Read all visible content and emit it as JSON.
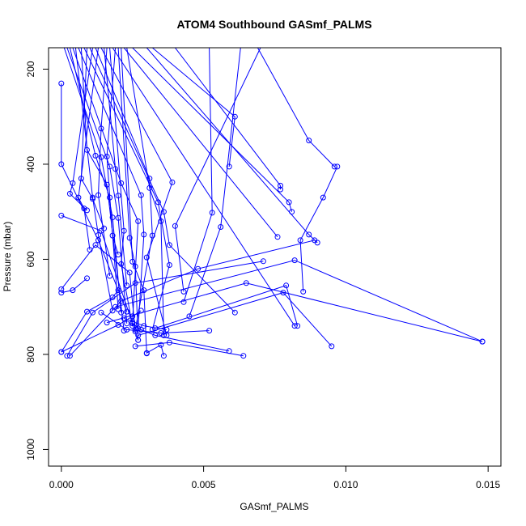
{
  "chart_data": {
    "type": "line",
    "title": "ATOM4 Southbound GASmf_PALMS",
    "xlabel": "GASmf_PALMS",
    "ylabel": "Pressure (mbar)",
    "xlim": [
      -0.00045,
      0.01545
    ],
    "ylim": [
      1035,
      155
    ],
    "y_axis_reversed": true,
    "grid": false,
    "marker": "open-circle",
    "colors": {
      "series": "#0000ff",
      "axes": "#000000"
    },
    "x_ticks": [
      {
        "value": 0,
        "label": "0.000"
      },
      {
        "value": 0.005,
        "label": "0.005"
      },
      {
        "value": 0.01,
        "label": "0.010"
      },
      {
        "value": 0.015,
        "label": "0.015"
      }
    ],
    "y_ticks": [
      {
        "value": 200,
        "label": "200"
      },
      {
        "value": 400,
        "label": "400"
      },
      {
        "value": 600,
        "label": "600"
      },
      {
        "value": 800,
        "label": "800"
      },
      {
        "value": 1000,
        "label": "1000"
      }
    ],
    "series": [
      {
        "x": [
          0.0097,
          0.0092,
          0.0084,
          0.0085
        ],
        "y": [
          405,
          470,
          560,
          668
        ]
      },
      {
        "x": [
          0.0062,
          0.0055
        ],
        "y": [
          155,
          155
        ]
      },
      {
        "x": [
          0.0069,
          0.0087,
          0.0096
        ],
        "y": [
          155,
          350,
          405
        ]
      },
      {
        "x": [
          0.004,
          0.0077,
          0.0077
        ],
        "y": [
          155,
          445,
          453
        ]
      },
      {
        "x": [
          0.003,
          0.0087,
          0.009
        ],
        "y": [
          155,
          548,
          565
        ]
      },
      {
        "x": [
          0.0025,
          0.008,
          0.0081
        ],
        "y": [
          155,
          480,
          500
        ]
      },
      {
        "x": [
          0.0018,
          0.0082
        ],
        "y": [
          155,
          740
        ]
      },
      {
        "x": [
          0.0032,
          0.0061,
          0.0059
        ],
        "y": [
          155,
          300,
          405
        ]
      },
      {
        "x": [
          0.0022,
          0.0076
        ],
        "y": [
          155,
          553
        ]
      },
      {
        "x": [
          0.007,
          0.004,
          0.0043
        ],
        "y": [
          155,
          530,
          668
        ]
      },
      {
        "x": [
          0.0052,
          0.0053,
          0.0043
        ],
        "y": [
          155,
          502,
          690
        ]
      },
      {
        "x": [
          0.0063,
          0.0056,
          0.0045
        ],
        "y": [
          155,
          532,
          720
        ]
      },
      {
        "x": [
          0.0014,
          0.0039,
          0.003,
          0.0037
        ],
        "y": [
          155,
          438,
          596,
          760
        ]
      },
      {
        "x": [
          0.001,
          0.0036,
          0.0038,
          0.0061
        ],
        "y": [
          155,
          500,
          570,
          712
        ]
      },
      {
        "x": [
          0.0008,
          0.0034,
          0.0038,
          0.0032
        ],
        "y": [
          155,
          480,
          612,
          748
        ]
      },
      {
        "x": [
          0.0012,
          0.0031,
          0.0032,
          0.0026
        ],
        "y": [
          155,
          430,
          550,
          748
        ]
      },
      {
        "x": [
          0.0006,
          0.0028,
          0.0029,
          0.0027
        ],
        "y": [
          155,
          465,
          548,
          745
        ]
      },
      {
        "x": [
          0.0004,
          0.0021,
          0.0027,
          0.0025
        ],
        "y": [
          155,
          440,
          520,
          732
        ]
      },
      {
        "x": [
          0.0002,
          0.0017,
          0.002,
          0.0023
        ],
        "y": [
          155,
          405,
          513,
          735
        ]
      },
      {
        "x": [
          0.0001,
          0.0014,
          0.0018,
          0.0021
        ],
        "y": [
          155,
          385,
          512,
          712
        ]
      },
      {
        "x": [
          0.0003,
          0.0012,
          0.0017,
          0.002
        ],
        "y": [
          155,
          382,
          470,
          705
        ]
      },
      {
        "x": [
          0.0007,
          0.0009,
          0.0016,
          0.0022
        ],
        "y": [
          155,
          370,
          443,
          750
        ]
      },
      {
        "x": [
          0.0005,
          0.0011,
          0.0013,
          0.0018
        ],
        "y": [
          155,
          470,
          549,
          708
        ]
      },
      {
        "x": [
          0.0009,
          0.0007,
          0.0011,
          0.0015
        ],
        "y": [
          155,
          430,
          473,
          535
        ]
      },
      {
        "x": [
          0.0011,
          0.0004,
          0.0003,
          0.0009
        ],
        "y": [
          155,
          440,
          462,
          497
        ]
      },
      {
        "x": [
          0.0013,
          0.0006,
          0.0008,
          0.001
        ],
        "y": [
          155,
          470,
          493,
          580
        ]
      },
      {
        "x": [
          0.0016,
          0.0014,
          0.0013,
          0.0017
        ],
        "y": [
          155,
          325,
          465,
          635
        ]
      },
      {
        "x": [
          0.0019,
          0.0016,
          0.0018,
          0.002
        ],
        "y": [
          155,
          384,
          550,
          590
        ]
      },
      {
        "x": [
          0.0015,
          0.0019,
          0.002,
          0.0023
        ],
        "y": [
          155,
          410,
          466,
          655
        ]
      },
      {
        "x": [
          0.0017,
          0.0022,
          0.0021,
          0.0025
        ],
        "y": [
          155,
          540,
          610,
          740
        ]
      },
      {
        "x": [
          0.002,
          0.0024,
          0.0026,
          0.0027
        ],
        "y": [
          155,
          555,
          615,
          770
        ]
      },
      {
        "x": [
          0.0021,
          0.0025,
          0.0029,
          0.003
        ],
        "y": [
          155,
          605,
          665,
          798
        ]
      },
      {
        "x": [
          0.0023,
          0.0031,
          0.0035,
          0.0036
        ],
        "y": [
          155,
          450,
          520,
          760
        ]
      },
      {
        "x": [
          0.0,
          0.0,
          0.0013,
          0.0023
        ],
        "y": [
          230,
          400,
          560,
          710
        ]
      },
      {
        "x": [
          0.0,
          0.0014,
          0.0027
        ],
        "y": [
          508,
          540,
          770
        ]
      },
      {
        "x": [
          0.0,
          0.0012,
          0.0024,
          0.0026
        ],
        "y": [
          663,
          570,
          628,
          752
        ]
      },
      {
        "x": [
          0.0,
          0.0004,
          0.0009
        ],
        "y": [
          670,
          665,
          640
        ]
      },
      {
        "x": [
          0.0,
          0.0009,
          0.0018,
          0.002
        ],
        "y": [
          795,
          710,
          680,
          665
        ]
      },
      {
        "x": [
          0.0002,
          0.0011,
          0.0026,
          0.0071
        ],
        "y": [
          803,
          712,
          650,
          604
        ]
      },
      {
        "x": [
          0.0003,
          0.0021,
          0.0048,
          0.0089
        ],
        "y": [
          803,
          688,
          620,
          560
        ]
      },
      {
        "x": [
          0.0,
          0.002,
          0.0025,
          0.0028
        ],
        "y": [
          795,
          738,
          720,
          708
        ]
      },
      {
        "x": [
          0.0014,
          0.0023,
          0.0035,
          0.0052
        ],
        "y": [
          712,
          748,
          755,
          750
        ]
      },
      {
        "x": [
          0.0025,
          0.0028,
          0.0033,
          0.0059
        ],
        "y": [
          735,
          748,
          760,
          793
        ]
      },
      {
        "x": [
          0.0026,
          0.0038,
          0.0064
        ],
        "y": [
          783,
          775,
          803
        ]
      },
      {
        "x": [
          0.003,
          0.0035,
          0.0036
        ],
        "y": [
          797,
          780,
          803
        ]
      },
      {
        "x": [
          0.0027,
          0.0078,
          0.0095
        ],
        "y": [
          760,
          670,
          783
        ]
      },
      {
        "x": [
          0.0016,
          0.0065,
          0.0148
        ],
        "y": [
          733,
          650,
          773
        ]
      },
      {
        "x": [
          0.0019,
          0.0082,
          0.0148
        ],
        "y": [
          700,
          602,
          773
        ]
      },
      {
        "x": [
          0.0033,
          0.0079,
          0.0083
        ],
        "y": [
          745,
          655,
          740
        ]
      },
      {
        "x": [
          0.0022,
          0.0029,
          0.0037
        ],
        "y": [
          724,
          740,
          748
        ]
      }
    ]
  }
}
